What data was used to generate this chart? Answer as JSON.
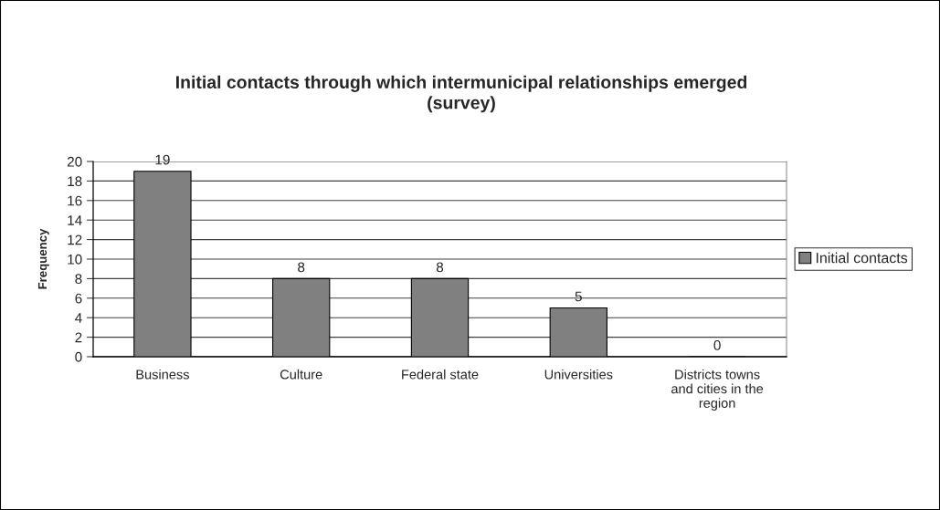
{
  "chart_data": {
    "type": "bar",
    "title": "Initial contacts through which intermunicipal relationships emerged\n(survey)",
    "ylabel": "Frequency",
    "categories": [
      "Business",
      "Culture",
      "Federal state",
      "Universities",
      "Districts towns\nand cities in the\nregion"
    ],
    "series": [
      {
        "name": "Initial contacts",
        "color": "#808080",
        "values": [
          19,
          8,
          8,
          5,
          0
        ]
      }
    ],
    "ylim": [
      0,
      20
    ],
    "yticks": [
      0,
      2,
      4,
      6,
      8,
      10,
      12,
      14,
      16,
      18,
      20
    ],
    "grid": "y",
    "legend": "right",
    "data_labels": true
  }
}
